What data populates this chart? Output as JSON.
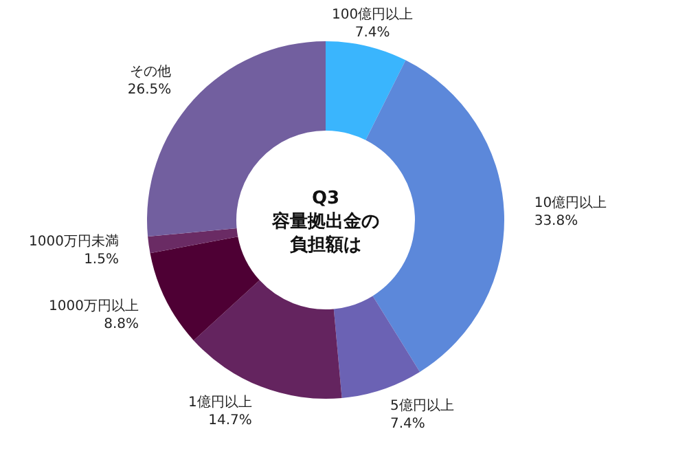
{
  "chart_data": {
    "type": "donut",
    "title": "Q3\n容量拠出金の負担額は",
    "categories": [
      "100億円以上",
      "10億円以上",
      "5億円以上",
      "1億円以上",
      "1000万円以上",
      "1000万円未満",
      "その他"
    ],
    "values": [
      7.4,
      33.8,
      7.4,
      14.7,
      8.8,
      1.5,
      26.5
    ],
    "value_labels": [
      "7.4%",
      "33.8%",
      "7.4%",
      "14.7%",
      "8.8%",
      "1.5%",
      "26.5%"
    ],
    "colors": [
      "#3ab5fd",
      "#5c88da",
      "#6b62b4",
      "#64245f",
      "#4e0034",
      "#6a2b64",
      "#725f9f"
    ],
    "legend": false
  }
}
